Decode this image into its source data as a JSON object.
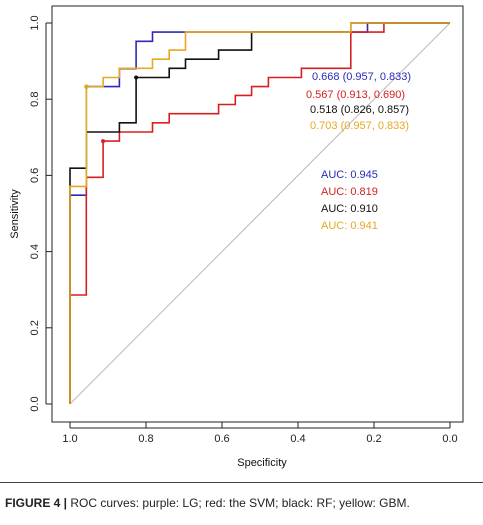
{
  "chart_data": {
    "type": "line",
    "xlabel": "Specificity",
    "ylabel": "Sensitivity",
    "xlim": [
      1.0,
      0.0
    ],
    "ylim": [
      0.0,
      1.0
    ],
    "x_reversed": true,
    "x_ticks": [
      "1.0",
      "0.8",
      "0.6",
      "0.4",
      "0.2",
      "0.0"
    ],
    "y_ticks": [
      "0.0",
      "0.2",
      "0.4",
      "0.6",
      "0.8",
      "1.0"
    ],
    "x_tick_values": [
      1.0,
      0.8,
      0.6,
      0.4,
      0.2,
      0.0
    ],
    "y_tick_values": [
      0.0,
      0.2,
      0.4,
      0.6,
      0.8,
      1.0
    ],
    "grid": false,
    "reference_line": {
      "from": [
        1.0,
        0.0
      ],
      "to": [
        0.0,
        1.0
      ],
      "color": "#b8b8b8"
    },
    "series": [
      {
        "color": "#2a2ab8",
        "threshold": {
          "x": 0.957,
          "y": 0.833
        },
        "threshold_label": "0.668 (0.957, 0.833)",
        "auc_label": "AUC: 0.945",
        "points": [
          [
            1.0,
            0.0
          ],
          [
            1.0,
            0.548
          ],
          [
            0.957,
            0.548
          ],
          [
            0.957,
            0.833
          ],
          [
            0.87,
            0.833
          ],
          [
            0.87,
            0.88
          ],
          [
            0.826,
            0.88
          ],
          [
            0.826,
            0.952
          ],
          [
            0.783,
            0.952
          ],
          [
            0.783,
            0.976
          ],
          [
            0.696,
            0.976
          ],
          [
            0.217,
            0.976
          ],
          [
            0.217,
            1.0
          ],
          [
            0.0,
            1.0
          ]
        ]
      },
      {
        "color": "#d62020",
        "threshold": {
          "x": 0.913,
          "y": 0.69
        },
        "threshold_label": "0.567 (0.913, 0.690)",
        "auc_label": "AUC: 0.819",
        "points": [
          [
            1.0,
            0.0
          ],
          [
            1.0,
            0.286
          ],
          [
            0.957,
            0.286
          ],
          [
            0.957,
            0.595
          ],
          [
            0.913,
            0.595
          ],
          [
            0.913,
            0.69
          ],
          [
            0.87,
            0.69
          ],
          [
            0.87,
            0.714
          ],
          [
            0.783,
            0.714
          ],
          [
            0.783,
            0.738
          ],
          [
            0.739,
            0.738
          ],
          [
            0.739,
            0.762
          ],
          [
            0.696,
            0.762
          ],
          [
            0.609,
            0.762
          ],
          [
            0.609,
            0.786
          ],
          [
            0.565,
            0.786
          ],
          [
            0.565,
            0.81
          ],
          [
            0.522,
            0.81
          ],
          [
            0.522,
            0.833
          ],
          [
            0.478,
            0.833
          ],
          [
            0.478,
            0.857
          ],
          [
            0.391,
            0.857
          ],
          [
            0.391,
            0.881
          ],
          [
            0.261,
            0.881
          ],
          [
            0.261,
            0.976
          ],
          [
            0.174,
            0.976
          ],
          [
            0.174,
            1.0
          ],
          [
            0.0,
            1.0
          ]
        ]
      },
      {
        "color": "#111111",
        "threshold": {
          "x": 0.826,
          "y": 0.857
        },
        "threshold_label": "0.518 (0.826, 0.857)",
        "auc_label": "AUC: 0.910",
        "points": [
          [
            1.0,
            0.0
          ],
          [
            1.0,
            0.619
          ],
          [
            0.957,
            0.619
          ],
          [
            0.957,
            0.714
          ],
          [
            0.87,
            0.714
          ],
          [
            0.87,
            0.738
          ],
          [
            0.826,
            0.738
          ],
          [
            0.826,
            0.857
          ],
          [
            0.783,
            0.857
          ],
          [
            0.739,
            0.857
          ],
          [
            0.739,
            0.881
          ],
          [
            0.696,
            0.881
          ],
          [
            0.696,
            0.905
          ],
          [
            0.609,
            0.905
          ],
          [
            0.609,
            0.929
          ],
          [
            0.522,
            0.929
          ],
          [
            0.522,
            0.976
          ],
          [
            0.261,
            0.976
          ],
          [
            0.261,
            1.0
          ],
          [
            0.0,
            1.0
          ]
        ]
      },
      {
        "color": "#e8a820",
        "threshold": {
          "x": 0.957,
          "y": 0.833
        },
        "threshold_label": "0.703 (0.957, 0.833)",
        "auc_label": "AUC: 0.941",
        "points": [
          [
            1.0,
            0.0
          ],
          [
            1.0,
            0.571
          ],
          [
            0.957,
            0.571
          ],
          [
            0.957,
            0.833
          ],
          [
            0.913,
            0.833
          ],
          [
            0.913,
            0.857
          ],
          [
            0.87,
            0.857
          ],
          [
            0.87,
            0.881
          ],
          [
            0.783,
            0.881
          ],
          [
            0.783,
            0.905
          ],
          [
            0.739,
            0.905
          ],
          [
            0.739,
            0.929
          ],
          [
            0.696,
            0.929
          ],
          [
            0.696,
            0.976
          ],
          [
            0.261,
            0.976
          ],
          [
            0.261,
            1.0
          ],
          [
            0.0,
            1.0
          ]
        ]
      }
    ]
  },
  "caption": {
    "lead": "FIGURE 4 |",
    "text": " ROC curves: purple: LG; red: the SVM; black: RF; yellow: GBM."
  }
}
